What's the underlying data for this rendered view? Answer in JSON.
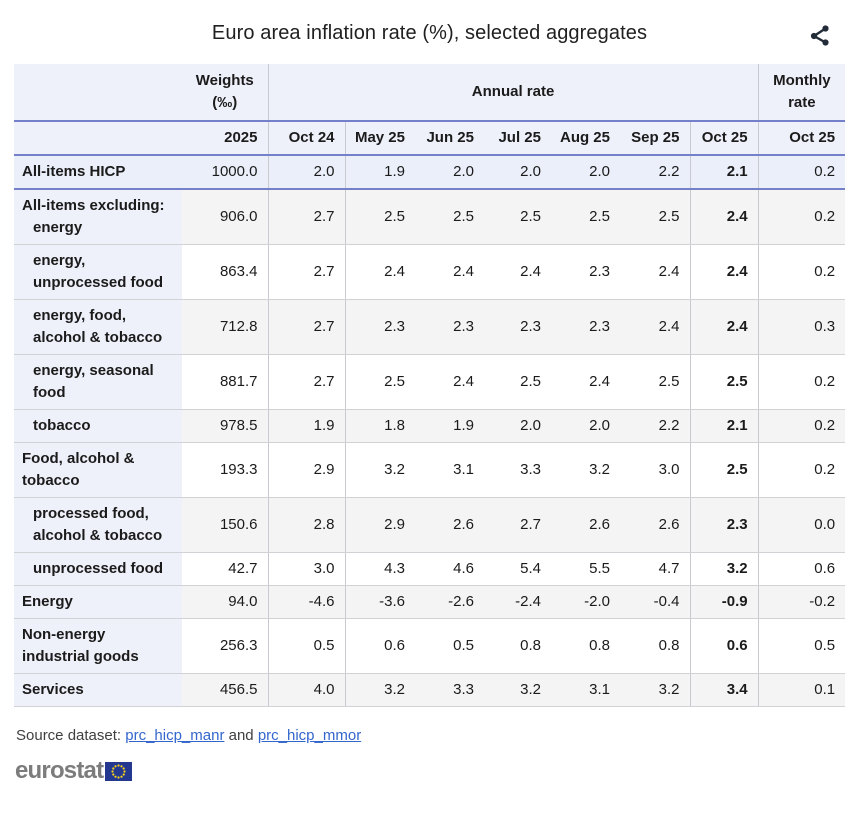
{
  "title": "Euro area inflation rate (%), selected aggregates",
  "colors": {
    "header_bg": "#eef0fa",
    "label_col_bg": "#eff1fa",
    "highlight_row_bg": "#ebeffa",
    "stripe_bg": "#f4f4f4",
    "blue_border": "#7480c9",
    "link_blue": "#3366cc",
    "logo_gray": "#7c7c7c",
    "eu_flag_blue": "#24388f",
    "eu_star_yellow": "#ffd617"
  },
  "icons": {
    "share": "share-icon",
    "eu_flag": "eu-flag-icon"
  },
  "table": {
    "header": {
      "weights_line1": "Weights",
      "weights_line2": "(‰)",
      "annual_rate_label": "Annual rate",
      "monthly_rate_label": "Monthly rate",
      "year": "2025",
      "annual_columns": [
        "Oct 24",
        "May 25",
        "Jun 25",
        "Jul 25",
        "Aug 25",
        "Sep 25",
        "Oct 25"
      ],
      "monthly_column": "Oct 25"
    },
    "rows": [
      {
        "highlight": true,
        "label_lines": [
          {
            "text": "All-items HICP",
            "indent": 0
          }
        ],
        "weight": "1000.0",
        "annual": [
          "2.0",
          "1.9",
          "2.0",
          "2.0",
          "2.0",
          "2.2",
          "2.1"
        ],
        "monthly": "0.2"
      },
      {
        "label_lines": [
          {
            "text": "All-items excluding:",
            "indent": 0
          },
          {
            "text": "energy",
            "indent": 1
          }
        ],
        "weight": "906.0",
        "annual": [
          "2.7",
          "2.5",
          "2.5",
          "2.5",
          "2.5",
          "2.5",
          "2.4"
        ],
        "monthly": "0.2"
      },
      {
        "label_lines": [
          {
            "text": "energy,",
            "indent": 1
          },
          {
            "text": "unprocessed food",
            "indent": 1
          }
        ],
        "weight": "863.4",
        "annual": [
          "2.7",
          "2.4",
          "2.4",
          "2.4",
          "2.3",
          "2.4",
          "2.4"
        ],
        "monthly": "0.2"
      },
      {
        "label_lines": [
          {
            "text": "energy, food,",
            "indent": 1
          },
          {
            "text": "alcohol & tobacco",
            "indent": 1
          }
        ],
        "weight": "712.8",
        "annual": [
          "2.7",
          "2.3",
          "2.3",
          "2.3",
          "2.3",
          "2.4",
          "2.4"
        ],
        "monthly": "0.3"
      },
      {
        "label_lines": [
          {
            "text": "energy, seasonal",
            "indent": 1
          },
          {
            "text": "food",
            "indent": 1
          }
        ],
        "weight": "881.7",
        "annual": [
          "2.7",
          "2.5",
          "2.4",
          "2.5",
          "2.4",
          "2.5",
          "2.5"
        ],
        "monthly": "0.2"
      },
      {
        "label_lines": [
          {
            "text": "tobacco",
            "indent": 1
          }
        ],
        "weight": "978.5",
        "annual": [
          "1.9",
          "1.8",
          "1.9",
          "2.0",
          "2.0",
          "2.2",
          "2.1"
        ],
        "monthly": "0.2"
      },
      {
        "label_lines": [
          {
            "text": "Food, alcohol &",
            "indent": 0
          },
          {
            "text": "tobacco",
            "indent": 0
          }
        ],
        "weight": "193.3",
        "annual": [
          "2.9",
          "3.2",
          "3.1",
          "3.3",
          "3.2",
          "3.0",
          "2.5"
        ],
        "monthly": "0.2"
      },
      {
        "label_lines": [
          {
            "text": "processed food,",
            "indent": 1
          },
          {
            "text": "alcohol & tobacco",
            "indent": 1
          }
        ],
        "weight": "150.6",
        "annual": [
          "2.8",
          "2.9",
          "2.6",
          "2.7",
          "2.6",
          "2.6",
          "2.3"
        ],
        "monthly": "0.0"
      },
      {
        "label_lines": [
          {
            "text": "unprocessed food",
            "indent": 1
          }
        ],
        "weight": "42.7",
        "annual": [
          "3.0",
          "4.3",
          "4.6",
          "5.4",
          "5.5",
          "4.7",
          "3.2"
        ],
        "monthly": "0.6"
      },
      {
        "label_lines": [
          {
            "text": "Energy",
            "indent": 0
          }
        ],
        "weight": "94.0",
        "annual": [
          "-4.6",
          "-3.6",
          "-2.6",
          "-2.4",
          "-2.0",
          "-0.4",
          "-0.9"
        ],
        "monthly": "-0.2"
      },
      {
        "label_lines": [
          {
            "text": "Non-energy",
            "indent": 0
          },
          {
            "text": "industrial goods",
            "indent": 0
          }
        ],
        "weight": "256.3",
        "annual": [
          "0.5",
          "0.6",
          "0.5",
          "0.8",
          "0.8",
          "0.8",
          "0.6"
        ],
        "monthly": "0.5"
      },
      {
        "label_lines": [
          {
            "text": "Services",
            "indent": 0
          }
        ],
        "weight": "456.5",
        "annual": [
          "4.0",
          "3.2",
          "3.3",
          "3.2",
          "3.1",
          "3.2",
          "3.4"
        ],
        "monthly": "0.1"
      }
    ]
  },
  "footer": {
    "source_prefix": "Source dataset: ",
    "link1": "prc_hicp_manr",
    "conjunction": " and ",
    "link2": "prc_hicp_mmor",
    "logo_text": "eurostat"
  },
  "chart_data": {
    "type": "table",
    "title": "Euro area inflation rate (%), selected aggregates",
    "column_groups": [
      "Weights (‰) 2025",
      "Annual rate",
      "Monthly rate"
    ],
    "columns": [
      "Weights (‰) 2025",
      "Oct 24",
      "May 25",
      "Jun 25",
      "Jul 25",
      "Aug 25",
      "Sep 25",
      "Oct 25",
      "Monthly rate Oct 25"
    ],
    "rows": [
      {
        "label": "All-items HICP",
        "values": [
          1000.0,
          2.0,
          1.9,
          2.0,
          2.0,
          2.0,
          2.2,
          2.1,
          0.2
        ]
      },
      {
        "label": "All-items excluding: energy",
        "values": [
          906.0,
          2.7,
          2.5,
          2.5,
          2.5,
          2.5,
          2.5,
          2.4,
          0.2
        ]
      },
      {
        "label": "All-items excluding: energy, unprocessed food",
        "values": [
          863.4,
          2.7,
          2.4,
          2.4,
          2.4,
          2.3,
          2.4,
          2.4,
          0.2
        ]
      },
      {
        "label": "All-items excluding: energy, food, alcohol & tobacco",
        "values": [
          712.8,
          2.7,
          2.3,
          2.3,
          2.3,
          2.3,
          2.4,
          2.4,
          0.3
        ]
      },
      {
        "label": "All-items excluding: energy, seasonal food",
        "values": [
          881.7,
          2.7,
          2.5,
          2.4,
          2.5,
          2.4,
          2.5,
          2.5,
          0.2
        ]
      },
      {
        "label": "All-items excluding: tobacco",
        "values": [
          978.5,
          1.9,
          1.8,
          1.9,
          2.0,
          2.0,
          2.2,
          2.1,
          0.2
        ]
      },
      {
        "label": "Food, alcohol & tobacco",
        "values": [
          193.3,
          2.9,
          3.2,
          3.1,
          3.3,
          3.2,
          3.0,
          2.5,
          0.2
        ]
      },
      {
        "label": "processed food, alcohol & tobacco",
        "values": [
          150.6,
          2.8,
          2.9,
          2.6,
          2.7,
          2.6,
          2.6,
          2.3,
          0.0
        ]
      },
      {
        "label": "unprocessed food",
        "values": [
          42.7,
          3.0,
          4.3,
          4.6,
          5.4,
          5.5,
          4.7,
          3.2,
          0.6
        ]
      },
      {
        "label": "Energy",
        "values": [
          94.0,
          -4.6,
          -3.6,
          -2.6,
          -2.4,
          -2.0,
          -0.4,
          -0.9,
          -0.2
        ]
      },
      {
        "label": "Non-energy industrial goods",
        "values": [
          256.3,
          0.5,
          0.6,
          0.5,
          0.8,
          0.8,
          0.8,
          0.6,
          0.5
        ]
      },
      {
        "label": "Services",
        "values": [
          456.5,
          4.0,
          3.2,
          3.3,
          3.2,
          3.1,
          3.2,
          3.4,
          0.1
        ]
      }
    ]
  }
}
